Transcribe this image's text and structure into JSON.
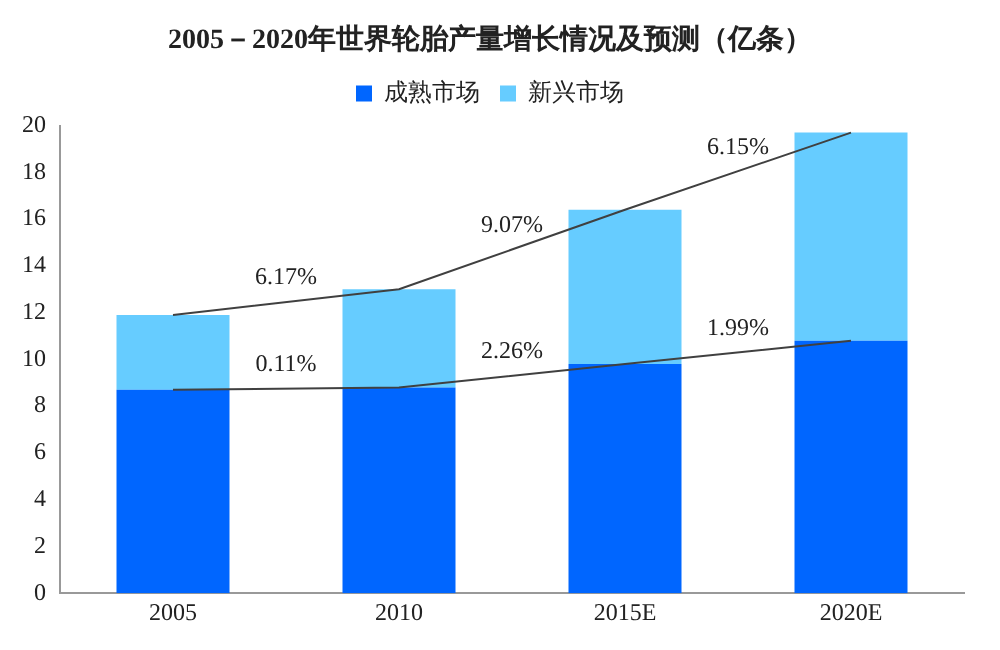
{
  "chart_data": {
    "type": "bar",
    "stacked": true,
    "title": "2005－2020年世界轮胎产量增长情况及预测（亿条）",
    "categories": [
      "2005",
      "2010",
      "2015E",
      "2020E"
    ],
    "series": [
      {
        "name": "成熟市场",
        "color": "#0066ff",
        "values": [
          8.7,
          8.8,
          9.8,
          10.8
        ]
      },
      {
        "name": "新兴市场",
        "color": "#66ccff",
        "values": [
          3.2,
          4.2,
          6.6,
          8.9
        ]
      },
      {
        "type": "line",
        "color": "#404040",
        "values": [
          8.7,
          8.8,
          9.8,
          10.8
        ]
      },
      {
        "type": "line",
        "color": "#404040",
        "values": [
          11.9,
          13.0,
          16.4,
          19.7
        ]
      }
    ],
    "annotations": [
      "6.17%",
      "9.07%",
      "6.15%",
      "0.11%",
      "2.26%",
      "1.99%"
    ],
    "ylim": [
      0,
      20
    ],
    "yticks": [
      0,
      2,
      4,
      6,
      8,
      10,
      12,
      14,
      16,
      18,
      20
    ],
    "grid": false,
    "legend": "top",
    "marker": "none"
  }
}
